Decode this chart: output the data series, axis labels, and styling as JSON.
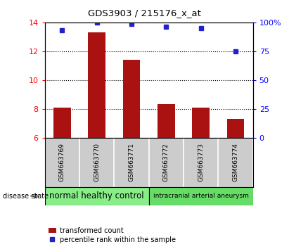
{
  "title": "GDS3903 / 215176_x_at",
  "samples": [
    "GSM663769",
    "GSM663770",
    "GSM663771",
    "GSM663772",
    "GSM663773",
    "GSM663774"
  ],
  "transformed_count": [
    8.1,
    13.3,
    11.4,
    8.35,
    8.1,
    7.35
  ],
  "percentile_rank": [
    93,
    100,
    99,
    96,
    95,
    75
  ],
  "ylim_left": [
    6,
    14
  ],
  "ylim_right": [
    0,
    100
  ],
  "yticks_left": [
    6,
    8,
    10,
    12,
    14
  ],
  "yticks_right": [
    0,
    25,
    50,
    75,
    100
  ],
  "bar_color": "#aa1111",
  "dot_color": "#2222cc",
  "bar_bottom": 6,
  "groups": [
    {
      "label": "normal healthy control",
      "start": 0,
      "end": 2,
      "color": "#88ee88"
    },
    {
      "label": "intracranial arterial aneurysm",
      "start": 3,
      "end": 5,
      "color": "#66dd66"
    }
  ],
  "disease_state_label": "disease state",
  "legend_bar_label": "transformed count",
  "legend_dot_label": "percentile rank within the sample",
  "gridline_yticks": [
    8,
    10,
    12
  ],
  "background_color": "#ffffff",
  "tick_area_color": "#cccccc"
}
